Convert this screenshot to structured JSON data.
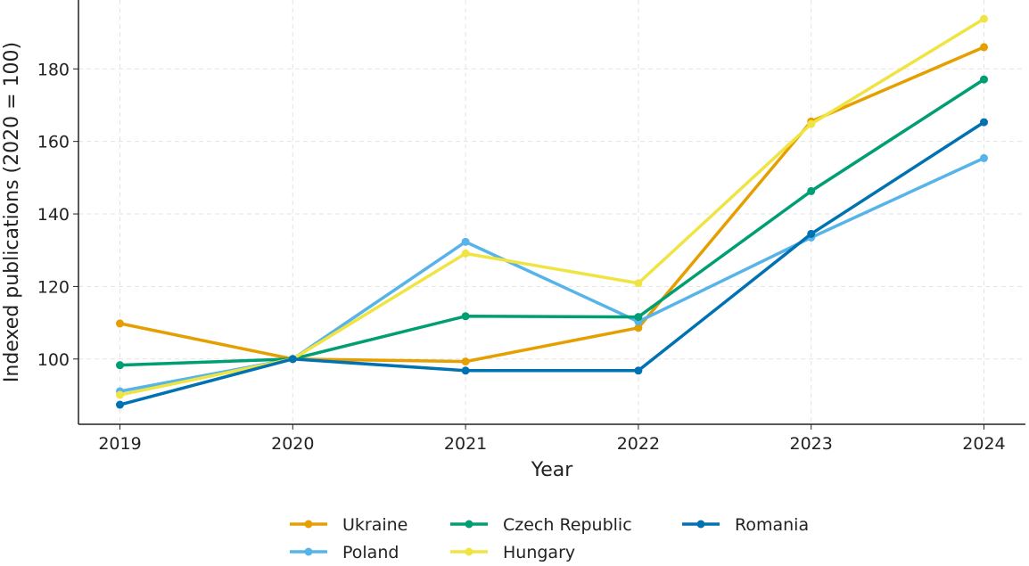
{
  "chart_data": {
    "type": "line",
    "title": "",
    "xlabel": "Year",
    "ylabel": "Indexed publications (2020 = 100)",
    "x": [
      2019,
      2020,
      2021,
      2022,
      2023,
      2024
    ],
    "xlim": [
      2018.76,
      2024.24
    ],
    "ylim": [
      82,
      199
    ],
    "yticks": [
      100,
      120,
      140,
      160,
      180
    ],
    "grid": true,
    "legend_placement": "bottom",
    "series": [
      {
        "name": "Ukraine",
        "color": "#E69F00",
        "values": [
          109.8,
          100,
          99.3,
          108.6,
          165.5,
          186.0
        ]
      },
      {
        "name": "Poland",
        "color": "#56B4E9",
        "values": [
          91.1,
          100,
          132.3,
          110.3,
          133.5,
          155.4
        ]
      },
      {
        "name": "Czech Republic",
        "color": "#009E73",
        "values": [
          98.3,
          100,
          111.8,
          111.6,
          146.3,
          177.1
        ]
      },
      {
        "name": "Hungary",
        "color": "#F0E442",
        "values": [
          90.1,
          100,
          129.1,
          120.9,
          164.8,
          193.8
        ]
      },
      {
        "name": "Romania",
        "color": "#0072B2",
        "values": [
          87.4,
          100,
          96.8,
          96.8,
          134.5,
          165.3
        ]
      }
    ]
  }
}
